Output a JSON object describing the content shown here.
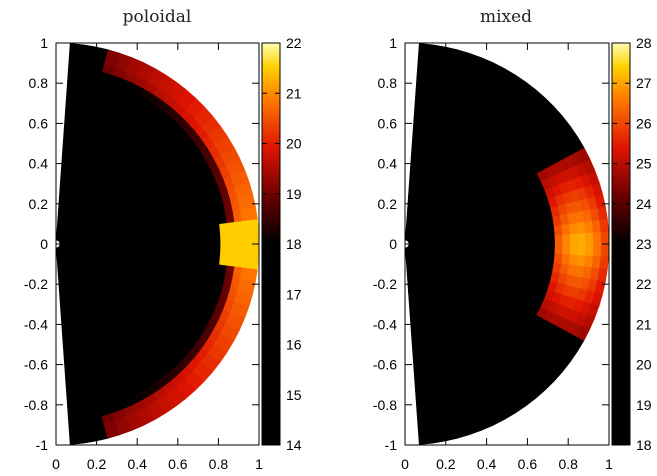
{
  "chart_data": [
    {
      "type": "heatmap",
      "title": "poloidal",
      "projection": "polar half-disk (meridional section)",
      "xlim": [
        0,
        1
      ],
      "ylim": [
        -1,
        1
      ],
      "xticks": [
        "0",
        "0.2",
        "0.4",
        "0.6",
        "0.8",
        "1"
      ],
      "yticks": [
        "1",
        "0.8",
        "0.6",
        "0.4",
        "0.2",
        "0",
        "-0.2",
        "-0.4",
        "-0.6",
        "-0.8",
        "-1"
      ],
      "colorbar": {
        "range": [
          14,
          22
        ],
        "ticks": [
          "22",
          "21",
          "20",
          "19",
          "18",
          "17",
          "16",
          "15",
          "14"
        ],
        "colormap": "black-red-yellow-white"
      },
      "field": {
        "background": 14,
        "surface_shell": {
          "r_inner": 0.84,
          "r_outer": 1.0,
          "value_equator": 21,
          "value_high_latitude": 19,
          "extends_to_latitude_deg": 75
        },
        "equatorial_spot": {
          "r_center": 0.92,
          "theta_halfwidth_deg": 7,
          "value": 21.5
        }
      }
    },
    {
      "type": "heatmap",
      "title": "mixed",
      "projection": "polar half-disk (meridional section)",
      "xlim": [
        0,
        1
      ],
      "ylim": [
        -1,
        1
      ],
      "xticks": [
        "0",
        "0.2",
        "0.4",
        "0.6",
        "0.8",
        "1"
      ],
      "yticks": [
        "1",
        "0.8",
        "0.6",
        "0.4",
        "0.2",
        "0",
        "-0.2",
        "-0.4",
        "-0.6",
        "-0.8",
        "-1"
      ],
      "colorbar": {
        "range": [
          18,
          28
        ],
        "ticks": [
          "28",
          "27",
          "26",
          "25",
          "24",
          "23",
          "22",
          "21",
          "20",
          "19",
          "18"
        ],
        "colormap": "black-red-yellow-white"
      },
      "field": {
        "background": 18,
        "equatorial_spot": {
          "r_inner": 0.72,
          "r_outer": 1.0,
          "theta_halfwidth_deg": 30,
          "value_center": 27.2,
          "value_edge": 24.5
        }
      }
    }
  ]
}
